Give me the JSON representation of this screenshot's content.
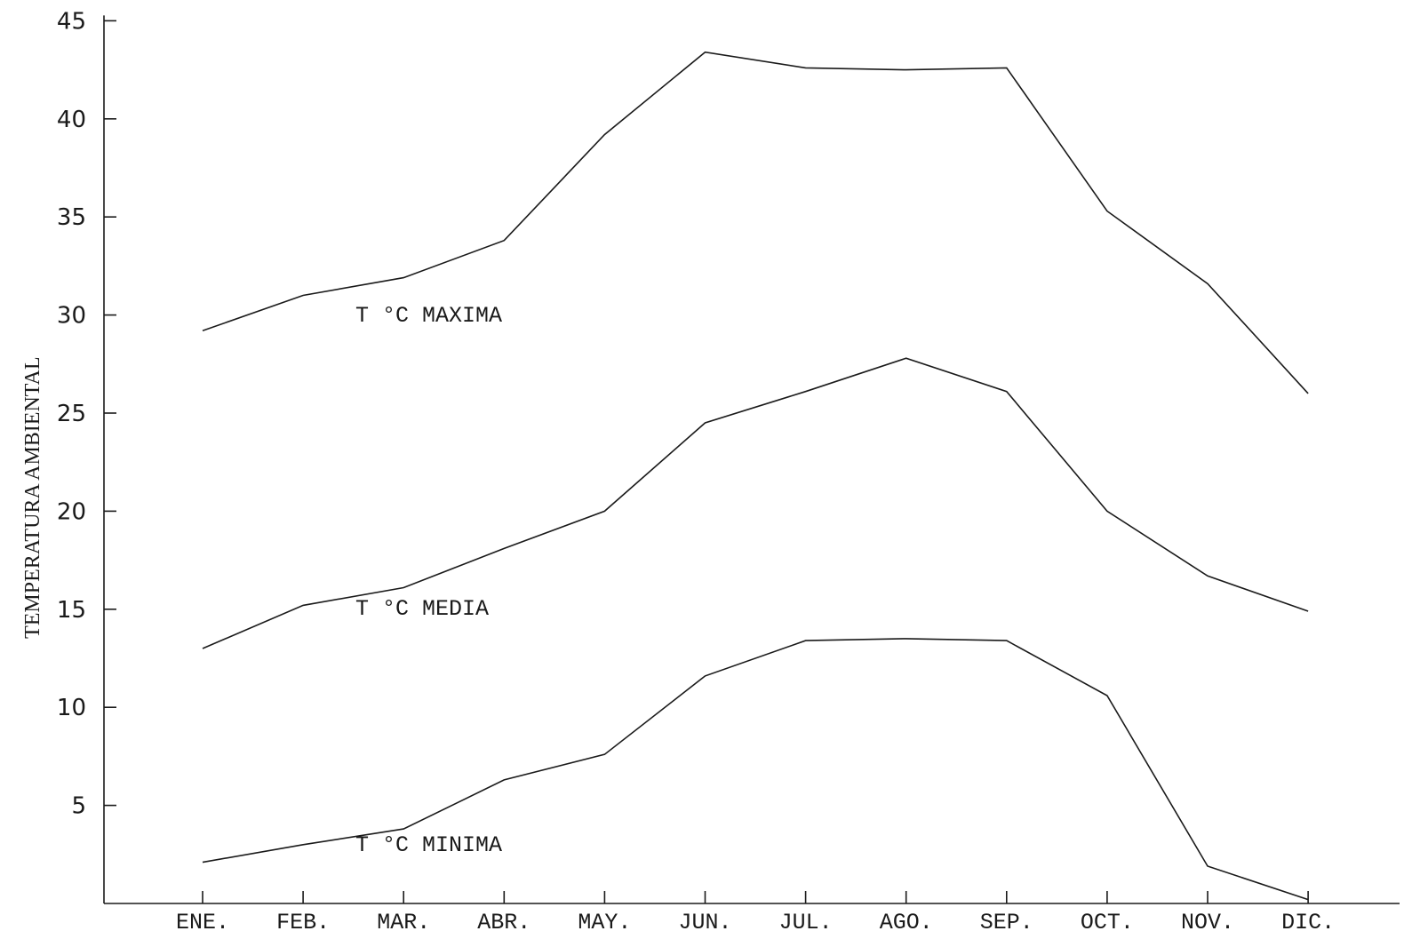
{
  "chart_data": {
    "type": "line",
    "title": "",
    "xlabel": "",
    "ylabel": "TEMPERATURA AMBIENTAL",
    "categories": [
      "ENE.",
      "FEB.",
      "MAR.",
      "ABR.",
      "MAY.",
      "JUN.",
      "JUL.",
      "AGO.",
      "SEP.",
      "OCT.",
      "NOV.",
      "DIC."
    ],
    "ylim": [
      0,
      45
    ],
    "yticks": [
      "5",
      "10",
      "15",
      "20",
      "25",
      "30",
      "35",
      "40",
      "45"
    ],
    "grid": false,
    "series": [
      {
        "name": "T °C MAXIMA",
        "values": [
          29.2,
          31.0,
          31.9,
          33.8,
          39.2,
          43.4,
          42.6,
          42.5,
          42.6,
          35.3,
          31.6,
          26.0
        ]
      },
      {
        "name": "T °C MEDIA",
        "values": [
          13.0,
          15.2,
          16.1,
          18.1,
          20.0,
          24.5,
          26.1,
          27.8,
          26.1,
          20.0,
          16.7,
          14.9
        ]
      },
      {
        "name": "T °C MINIMA",
        "values": [
          2.1,
          3.0,
          3.8,
          6.3,
          7.6,
          11.6,
          13.4,
          13.5,
          13.4,
          10.6,
          1.9,
          0.2
        ]
      }
    ]
  }
}
